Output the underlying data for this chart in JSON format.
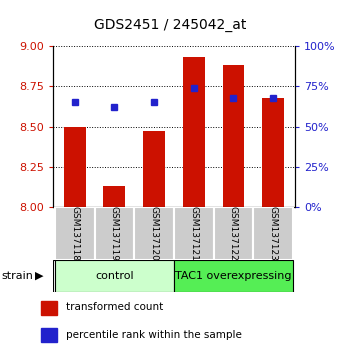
{
  "title": "GDS2451 / 245042_at",
  "samples": [
    "GSM137118",
    "GSM137119",
    "GSM137120",
    "GSM137121",
    "GSM137122",
    "GSM137123"
  ],
  "transformed_counts": [
    8.5,
    8.13,
    8.47,
    8.93,
    8.88,
    8.68
  ],
  "percentile_ranks": [
    65,
    62,
    65,
    74,
    68,
    68
  ],
  "ylim_left": [
    8.0,
    9.0
  ],
  "yticks_left": [
    8.0,
    8.25,
    8.5,
    8.75,
    9.0
  ],
  "ylim_right": [
    0,
    100
  ],
  "yticks_right": [
    0,
    25,
    50,
    75,
    100
  ],
  "groups": [
    {
      "label": "control",
      "indices": [
        0,
        1,
        2
      ],
      "color": "#ccffcc"
    },
    {
      "label": "TAC1 overexpressing",
      "indices": [
        3,
        4,
        5
      ],
      "color": "#55ee55"
    }
  ],
  "bar_color": "#cc1100",
  "dot_color": "#2222cc",
  "bar_width": 0.55,
  "legend_items": [
    {
      "label": "transformed count",
      "color": "#cc1100"
    },
    {
      "label": "percentile rank within the sample",
      "color": "#2222cc"
    }
  ],
  "strain_label": "strain"
}
